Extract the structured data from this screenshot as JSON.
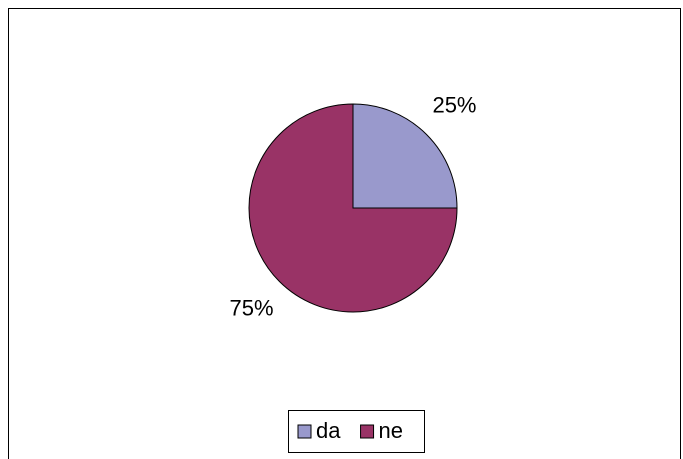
{
  "chart_data": {
    "type": "pie",
    "categories": [
      "da",
      "ne"
    ],
    "values": [
      25,
      75
    ],
    "value_labels": [
      "25%",
      "75%"
    ],
    "colors": [
      "#9999cc",
      "#993366"
    ],
    "legend": "bottom"
  }
}
